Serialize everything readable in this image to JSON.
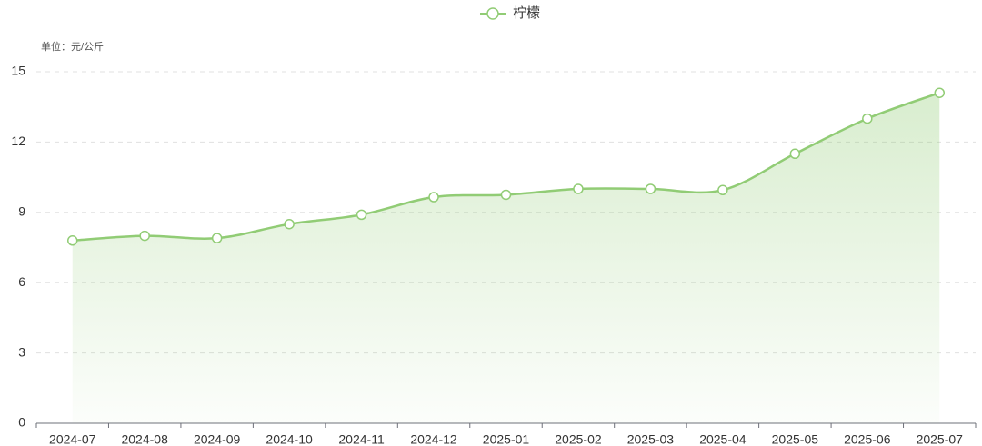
{
  "chart_data": {
    "type": "line",
    "y_label": "单位：元/公斤",
    "categories": [
      "2024-07",
      "2024-08",
      "2024-09",
      "2024-10",
      "2024-11",
      "2024-12",
      "2025-01",
      "2025-02",
      "2025-03",
      "2025-04",
      "2025-05",
      "2025-06",
      "2025-07"
    ],
    "series": [
      {
        "name": "柠檬",
        "color": "#91cc75",
        "values": [
          7.8,
          8.0,
          7.9,
          8.5,
          8.9,
          9.65,
          9.75,
          10.0,
          10.0,
          9.95,
          11.5,
          13.0,
          14.1
        ]
      }
    ],
    "ylim": [
      0,
      15
    ],
    "yticks": [
      0,
      3,
      6,
      9,
      12,
      15
    ],
    "grid": true,
    "smooth": true,
    "area": true,
    "legend": "top"
  }
}
